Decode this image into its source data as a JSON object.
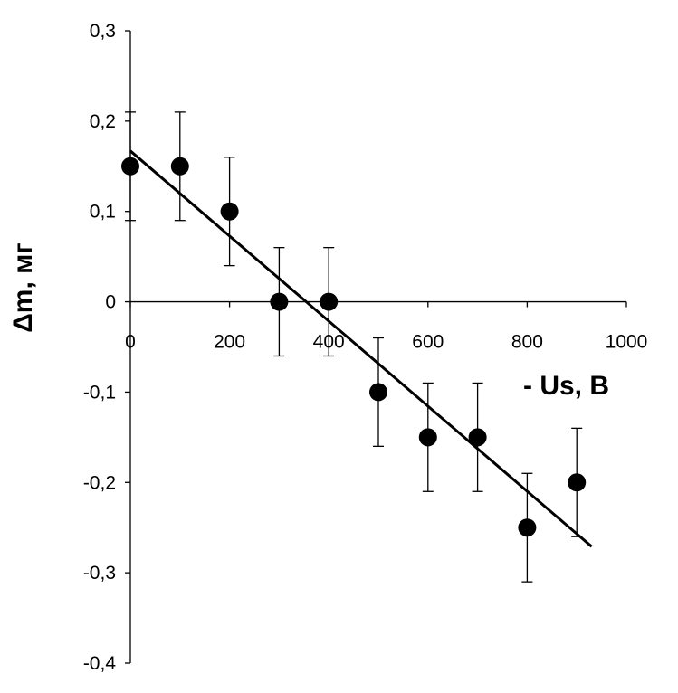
{
  "chart_data": {
    "type": "scatter",
    "xlabel": "- Us, B",
    "ylabel": "Δm, мг",
    "xlim": [
      0,
      1000
    ],
    "ylim": [
      -0.4,
      0.3
    ],
    "x_ticks": [
      0,
      200,
      400,
      600,
      800,
      1000
    ],
    "x_tick_labels": [
      "0",
      "200",
      "400",
      "600",
      "800",
      "1000"
    ],
    "y_ticks": [
      0.3,
      0.2,
      0.1,
      0,
      -0.1,
      -0.2,
      -0.3,
      -0.4
    ],
    "y_tick_labels": [
      "0,3",
      "0,2",
      "0,1",
      "0",
      "-0,1",
      "-0,2",
      "-0,3",
      "-0,4"
    ],
    "grid": false,
    "legend": "none",
    "series": [
      {
        "kind": "points-with-error-bars",
        "x": [
          0,
          100,
          200,
          300,
          400,
          500,
          600,
          700,
          800,
          900
        ],
        "y": [
          0.15,
          0.15,
          0.1,
          0,
          0,
          -0.1,
          -0.15,
          -0.15,
          -0.25,
          -0.2
        ],
        "error": [
          0.06,
          0.06,
          0.06,
          0.06,
          0.06,
          0.06,
          0.06,
          0.06,
          0.06,
          0.06
        ],
        "color": "#000000"
      },
      {
        "kind": "linear-fit",
        "x": [
          0,
          930
        ],
        "y": [
          0.167,
          -0.271
        ],
        "color": "#000000"
      }
    ]
  }
}
